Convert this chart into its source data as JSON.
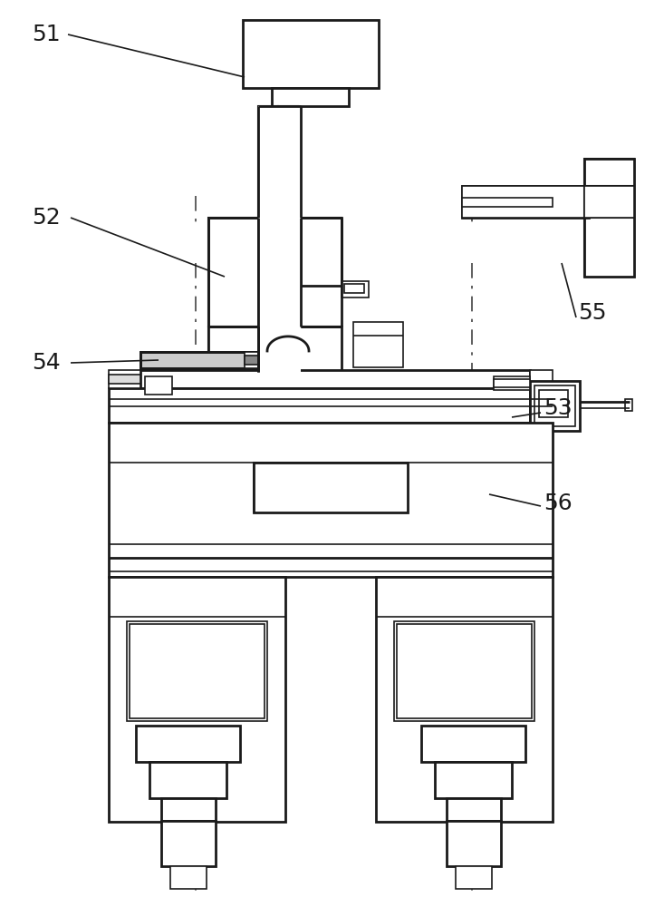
{
  "bg_color": "#ffffff",
  "line_color": "#1a1a1a",
  "label_color": "#1a1a1a",
  "label_fontsize": 18,
  "figsize": [
    7.33,
    10.0
  ],
  "dpi": 100
}
